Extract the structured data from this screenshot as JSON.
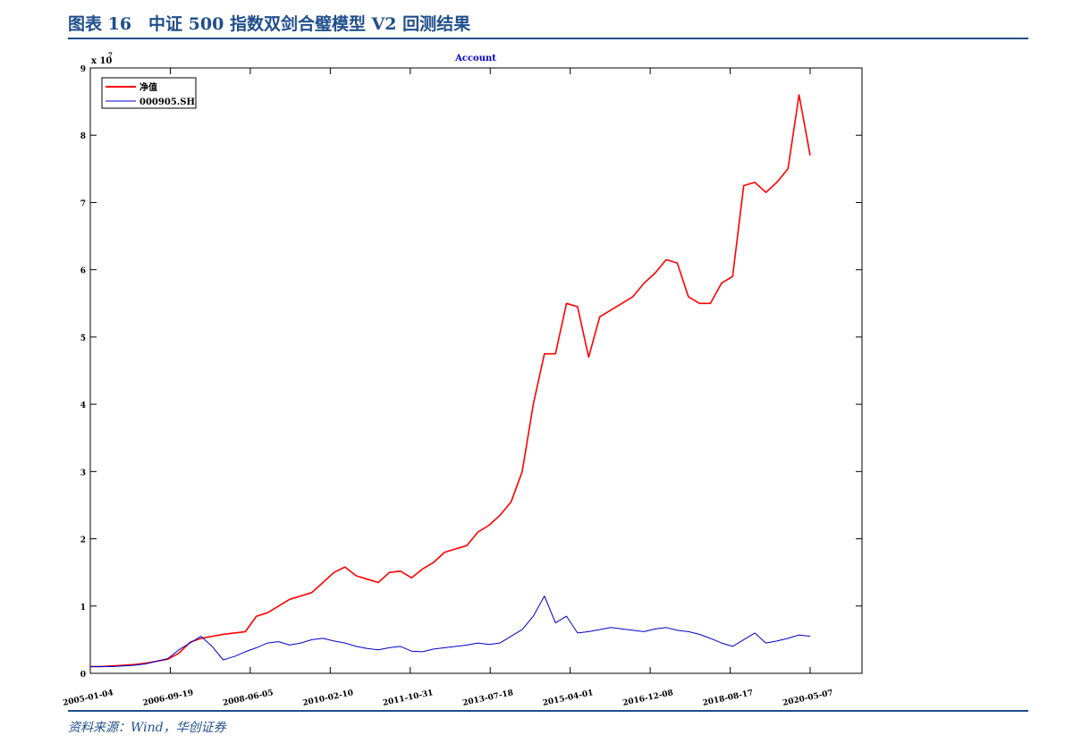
{
  "figure": {
    "title": "图表 16　中证 500 指数双剑合璧模型 V2 回测结果",
    "source": "资料来源：Wind，华创证券"
  },
  "chart_data": {
    "type": "line",
    "title": "Account",
    "xlabel": "",
    "ylabel": "",
    "y_exponent_label": "x 10",
    "y_exponent_power": "7",
    "ylim": [
      0,
      9
    ],
    "y_ticks": [
      "0",
      "1",
      "2",
      "3",
      "4",
      "5",
      "6",
      "7",
      "8",
      "9"
    ],
    "x_ticks": [
      "2005-01-04",
      "2006-09-19",
      "2008-06-05",
      "2010-02-10",
      "2011-10-31",
      "2013-07-18",
      "2015-04-01",
      "2016-12-08",
      "2018-08-17",
      "2020-05-07"
    ],
    "grid": false,
    "legend_position": "top-left",
    "series": [
      {
        "name": "净值",
        "color": "#ff0000",
        "values": [
          0.1,
          0.1,
          0.11,
          0.12,
          0.13,
          0.15,
          0.18,
          0.21,
          0.3,
          0.46,
          0.52,
          0.55,
          0.58,
          0.6,
          0.62,
          0.85,
          0.9,
          1.0,
          1.1,
          1.15,
          1.2,
          1.35,
          1.5,
          1.58,
          1.45,
          1.4,
          1.35,
          1.5,
          1.52,
          1.42,
          1.55,
          1.65,
          1.8,
          1.85,
          1.9,
          2.1,
          2.2,
          2.35,
          2.55,
          3.0,
          4.0,
          4.75,
          4.75,
          5.5,
          5.45,
          4.7,
          5.3,
          5.4,
          5.5,
          5.6,
          5.8,
          5.95,
          6.15,
          6.1,
          5.6,
          5.5,
          5.5,
          5.8,
          5.9,
          7.25,
          7.3,
          7.15,
          7.3,
          7.5,
          8.6,
          7.7
        ]
      },
      {
        "name": "000905.SH",
        "color": "#0000cc",
        "values": [
          0.1,
          0.1,
          0.1,
          0.11,
          0.12,
          0.14,
          0.18,
          0.22,
          0.35,
          0.45,
          0.55,
          0.4,
          0.2,
          0.25,
          0.32,
          0.38,
          0.45,
          0.47,
          0.42,
          0.45,
          0.5,
          0.52,
          0.48,
          0.45,
          0.4,
          0.37,
          0.35,
          0.38,
          0.4,
          0.33,
          0.32,
          0.36,
          0.38,
          0.4,
          0.42,
          0.45,
          0.43,
          0.45,
          0.55,
          0.65,
          0.85,
          1.15,
          0.75,
          0.85,
          0.6,
          0.62,
          0.65,
          0.68,
          0.66,
          0.64,
          0.62,
          0.66,
          0.68,
          0.64,
          0.62,
          0.58,
          0.52,
          0.45,
          0.4,
          0.5,
          0.6,
          0.45,
          0.48,
          0.52,
          0.57,
          0.55
        ]
      }
    ]
  }
}
